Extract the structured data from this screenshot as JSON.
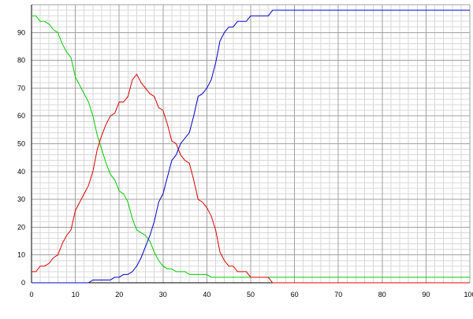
{
  "chart_data": {
    "type": "line",
    "title": "",
    "xlabel": "",
    "ylabel": "",
    "xlim": [
      0,
      100
    ],
    "ylim": [
      0,
      100
    ],
    "grid": true,
    "grid_color_minor": "#d8d8d8",
    "grid_color_major": "#a0a0a0",
    "x_ticks": [
      "0",
      "10",
      "20",
      "30",
      "40",
      "50",
      "60",
      "70",
      "80",
      "90",
      "100"
    ],
    "y_ticks": [
      "0",
      "10",
      "20",
      "30",
      "40",
      "50",
      "60",
      "70",
      "80",
      "90"
    ],
    "series": [
      {
        "color": "#00cc00",
        "x": [
          0,
          1,
          2,
          3,
          4,
          5,
          6,
          7,
          8,
          9,
          10,
          11,
          12,
          13,
          14,
          15,
          16,
          17,
          18,
          19,
          20,
          21,
          22,
          23,
          24,
          25,
          26,
          27,
          28,
          29,
          30,
          31,
          32,
          33,
          34,
          35,
          36,
          37,
          38,
          39,
          40,
          41,
          42,
          43,
          44,
          45,
          46,
          47,
          48,
          49,
          50,
          51,
          52,
          53,
          54,
          55,
          60,
          70,
          80,
          90,
          100
        ],
        "y": [
          96,
          96,
          94,
          94,
          93,
          91,
          90,
          86,
          83,
          81,
          74,
          71,
          68,
          65,
          60,
          53,
          48,
          43,
          39,
          37,
          33,
          32,
          29,
          23,
          19,
          18,
          17,
          15,
          11,
          8,
          6,
          5,
          5,
          4,
          4,
          4,
          3,
          3,
          3,
          3,
          3,
          2,
          2,
          2,
          2,
          2,
          2,
          2,
          2,
          2,
          2,
          2,
          2,
          2,
          2,
          2,
          2,
          2,
          2,
          2,
          2
        ]
      },
      {
        "color": "#dd0000",
        "x": [
          0,
          1,
          2,
          3,
          4,
          5,
          6,
          7,
          8,
          9,
          10,
          11,
          12,
          13,
          14,
          15,
          16,
          17,
          18,
          19,
          20,
          21,
          22,
          23,
          24,
          25,
          26,
          27,
          28,
          29,
          30,
          31,
          32,
          33,
          34,
          35,
          36,
          37,
          38,
          39,
          40,
          41,
          42,
          43,
          44,
          45,
          46,
          47,
          48,
          49,
          50,
          51,
          52,
          53,
          54,
          55,
          60,
          70,
          80,
          90,
          100
        ],
        "y": [
          4,
          4,
          6,
          6,
          7,
          9,
          10,
          14,
          17,
          19,
          26,
          29,
          32,
          35,
          40,
          48,
          53,
          57,
          60,
          61,
          65,
          65,
          67,
          73,
          75,
          72,
          70,
          68,
          67,
          63,
          62,
          57,
          51,
          50,
          46,
          44,
          43,
          37,
          30,
          29,
          27,
          24,
          19,
          11,
          8,
          6,
          6,
          4,
          4,
          4,
          2,
          2,
          2,
          2,
          2,
          0,
          0,
          0,
          0,
          0,
          0
        ]
      },
      {
        "color": "#0000cc",
        "x": [
          0,
          1,
          2,
          3,
          4,
          5,
          6,
          7,
          8,
          9,
          10,
          11,
          12,
          13,
          14,
          15,
          16,
          17,
          18,
          19,
          20,
          21,
          22,
          23,
          24,
          25,
          26,
          27,
          28,
          29,
          30,
          31,
          32,
          33,
          34,
          35,
          36,
          37,
          38,
          39,
          40,
          41,
          42,
          43,
          44,
          45,
          46,
          47,
          48,
          49,
          50,
          51,
          52,
          53,
          54,
          55,
          60,
          70,
          80,
          90,
          100
        ],
        "y": [
          0,
          0,
          0,
          0,
          0,
          0,
          0,
          0,
          0,
          0,
          0,
          0,
          0,
          0,
          1,
          1,
          1,
          1,
          1,
          2,
          2,
          3,
          3,
          4,
          6,
          9,
          13,
          17,
          22,
          29,
          32,
          38,
          44,
          46,
          50,
          52,
          54,
          60,
          67,
          68,
          70,
          73,
          79,
          87,
          90,
          92,
          92,
          94,
          94,
          94,
          96,
          96,
          96,
          96,
          96,
          98,
          98,
          98,
          98,
          98,
          98
        ]
      }
    ]
  }
}
